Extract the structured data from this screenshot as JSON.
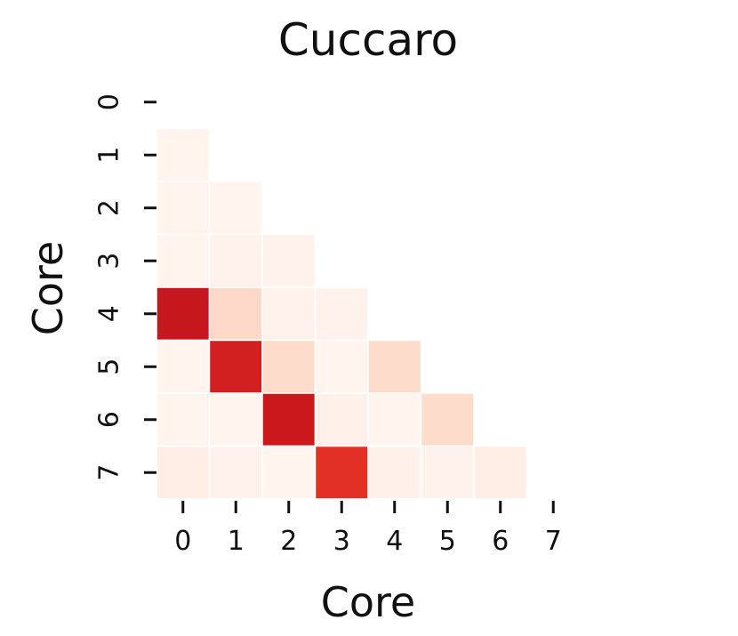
{
  "chart_data": {
    "type": "heatmap",
    "title": "Cuccaro",
    "xlabel": "Core",
    "ylabel": "Core",
    "x_categories": [
      "0",
      "1",
      "2",
      "3",
      "4",
      "5",
      "6",
      "7"
    ],
    "y_categories": [
      "0",
      "1",
      "2",
      "3",
      "4",
      "5",
      "6",
      "7"
    ],
    "mask": "upper-triangle-and-diagonal",
    "colormap": "Reds",
    "colormap_stops": [
      "#fff5f0",
      "#fee0d2",
      "#fcbba1",
      "#fc9272",
      "#fb6a4a",
      "#ef3b2c",
      "#cb181d",
      "#a50f15"
    ],
    "vmin": 0,
    "vmax": 1,
    "values": [
      [
        null,
        null,
        null,
        null,
        null,
        null,
        null,
        null
      ],
      [
        0.01,
        null,
        null,
        null,
        null,
        null,
        null,
        null
      ],
      [
        0.01,
        0.01,
        null,
        null,
        null,
        null,
        null,
        null
      ],
      [
        0.01,
        0.02,
        0.02,
        null,
        null,
        null,
        null,
        null
      ],
      [
        0.88,
        0.17,
        0.02,
        0.02,
        null,
        null,
        null,
        null
      ],
      [
        0.01,
        0.83,
        0.16,
        0.01,
        0.16,
        null,
        null,
        null
      ],
      [
        0.01,
        0.01,
        0.86,
        0.03,
        0.01,
        0.16,
        null,
        null
      ],
      [
        0.05,
        0.02,
        0.01,
        0.76,
        0.03,
        0.02,
        0.05,
        null
      ]
    ]
  }
}
